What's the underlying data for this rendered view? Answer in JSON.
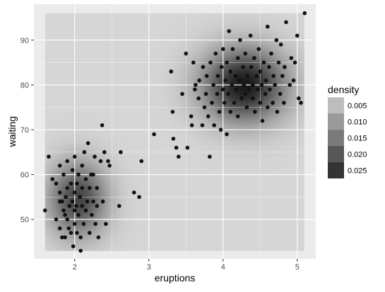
{
  "chart_data": {
    "type": "scatter",
    "title": "",
    "xlabel": "eruptions",
    "ylabel": "waiting",
    "xlim": [
      1.45,
      5.25
    ],
    "ylim": [
      41.2,
      98.0
    ],
    "xticks": [
      2,
      3,
      4,
      5
    ],
    "yticks": [
      50,
      60,
      70,
      80,
      90
    ],
    "grid": true,
    "background": "grey",
    "density_raster": {
      "x_range": [
        1.6,
        5.1
      ],
      "y_range": [
        43,
        96
      ],
      "components": [
        {
          "mx": 2.04,
          "my": 54.5,
          "sx": 0.28,
          "sy": 5.8,
          "w": 0.35
        },
        {
          "mx": 4.29,
          "my": 80.0,
          "sx": 0.4,
          "sy": 5.8,
          "w": 0.65
        }
      ]
    },
    "legend": {
      "title": "density",
      "position": "right",
      "labels": [
        "0.005",
        "0.010",
        "0.015",
        "0.020",
        "0.025"
      ],
      "colors": [
        "#bdbdbd",
        "#9a9a9a",
        "#7a7a7a",
        "#575757",
        "#343434"
      ]
    },
    "point_color": "#111111",
    "points": [
      [
        1.6,
        52
      ],
      [
        1.65,
        64
      ],
      [
        1.7,
        59
      ],
      [
        1.75,
        58
      ],
      [
        1.75,
        50
      ],
      [
        1.8,
        62
      ],
      [
        1.8,
        54
      ],
      [
        1.8,
        56
      ],
      [
        1.8,
        48
      ],
      [
        1.83,
        46
      ],
      [
        1.83,
        54
      ],
      [
        1.85,
        52
      ],
      [
        1.85,
        60
      ],
      [
        1.87,
        51
      ],
      [
        1.87,
        46
      ],
      [
        1.88,
        55
      ],
      [
        1.9,
        63
      ],
      [
        1.9,
        57
      ],
      [
        1.9,
        50
      ],
      [
        1.92,
        48
      ],
      [
        1.93,
        53
      ],
      [
        1.95,
        58
      ],
      [
        1.95,
        47
      ],
      [
        1.97,
        54
      ],
      [
        1.97,
        61
      ],
      [
        1.98,
        44
      ],
      [
        2.0,
        52
      ],
      [
        2.0,
        56
      ],
      [
        2.0,
        49
      ],
      [
        2.0,
        64
      ],
      [
        2.02,
        53
      ],
      [
        2.03,
        58
      ],
      [
        2.03,
        47
      ],
      [
        2.05,
        60
      ],
      [
        2.05,
        51
      ],
      [
        2.07,
        55
      ],
      [
        2.08,
        46
      ],
      [
        2.08,
        43
      ],
      [
        2.1,
        62
      ],
      [
        2.1,
        53
      ],
      [
        2.1,
        57
      ],
      [
        2.12,
        49
      ],
      [
        2.13,
        65
      ],
      [
        2.15,
        52
      ],
      [
        2.15,
        59
      ],
      [
        2.17,
        54
      ],
      [
        2.18,
        67
      ],
      [
        2.2,
        47
      ],
      [
        2.2,
        57
      ],
      [
        2.22,
        60
      ],
      [
        2.23,
        51
      ],
      [
        2.25,
        60
      ],
      [
        2.25,
        54
      ],
      [
        2.27,
        64
      ],
      [
        2.28,
        49
      ],
      [
        2.3,
        57
      ],
      [
        2.3,
        53
      ],
      [
        2.32,
        46
      ],
      [
        2.35,
        63
      ],
      [
        2.37,
        71
      ],
      [
        2.38,
        54
      ],
      [
        2.4,
        65
      ],
      [
        2.42,
        49
      ],
      [
        2.45,
        63
      ],
      [
        2.47,
        62
      ],
      [
        2.62,
        65
      ],
      [
        2.6,
        53
      ],
      [
        2.8,
        56
      ],
      [
        2.87,
        55
      ],
      [
        2.9,
        63
      ],
      [
        3.07,
        69
      ],
      [
        3.3,
        83
      ],
      [
        3.32,
        74
      ],
      [
        3.33,
        68
      ],
      [
        3.37,
        66
      ],
      [
        3.4,
        64
      ],
      [
        3.45,
        78
      ],
      [
        3.5,
        87
      ],
      [
        3.52,
        66
      ],
      [
        3.57,
        73
      ],
      [
        3.58,
        71
      ],
      [
        3.6,
        85
      ],
      [
        3.62,
        79
      ],
      [
        3.63,
        80
      ],
      [
        3.67,
        77
      ],
      [
        3.68,
        81
      ],
      [
        3.72,
        71
      ],
      [
        3.73,
        84
      ],
      [
        3.75,
        75
      ],
      [
        3.77,
        78
      ],
      [
        3.78,
        82
      ],
      [
        3.8,
        73
      ],
      [
        3.82,
        64
      ],
      [
        3.83,
        85
      ],
      [
        3.85,
        76
      ],
      [
        3.87,
        80
      ],
      [
        3.88,
        71
      ],
      [
        3.9,
        87
      ],
      [
        3.92,
        78
      ],
      [
        3.93,
        82
      ],
      [
        3.95,
        74
      ],
      [
        3.97,
        70
      ],
      [
        3.98,
        84
      ],
      [
        4.0,
        79
      ],
      [
        4.0,
        88
      ],
      [
        4.02,
        76
      ],
      [
        4.03,
        81
      ],
      [
        4.05,
        69
      ],
      [
        4.05,
        85
      ],
      [
        4.07,
        78
      ],
      [
        4.08,
        92
      ],
      [
        4.1,
        74
      ],
      [
        4.1,
        83
      ],
      [
        4.12,
        80
      ],
      [
        4.13,
        88
      ],
      [
        4.15,
        76
      ],
      [
        4.17,
        82
      ],
      [
        4.18,
        79
      ],
      [
        4.2,
        86
      ],
      [
        4.2,
        73
      ],
      [
        4.22,
        81
      ],
      [
        4.23,
        90
      ],
      [
        4.25,
        77
      ],
      [
        4.27,
        84
      ],
      [
        4.28,
        80
      ],
      [
        4.3,
        78
      ],
      [
        4.3,
        87
      ],
      [
        4.32,
        75
      ],
      [
        4.33,
        82
      ],
      [
        4.35,
        79
      ],
      [
        4.37,
        91
      ],
      [
        4.38,
        84
      ],
      [
        4.4,
        77
      ],
      [
        4.4,
        80
      ],
      [
        4.42,
        86
      ],
      [
        4.43,
        74
      ],
      [
        4.45,
        82
      ],
      [
        4.47,
        79
      ],
      [
        4.48,
        88
      ],
      [
        4.5,
        76
      ],
      [
        4.5,
        83
      ],
      [
        4.52,
        80
      ],
      [
        4.53,
        72
      ],
      [
        4.55,
        85
      ],
      [
        4.57,
        78
      ],
      [
        4.58,
        81
      ],
      [
        4.6,
        93
      ],
      [
        4.6,
        75
      ],
      [
        4.62,
        84
      ],
      [
        4.63,
        79
      ],
      [
        4.65,
        87
      ],
      [
        4.67,
        76
      ],
      [
        4.68,
        82
      ],
      [
        4.7,
        80
      ],
      [
        4.72,
        90
      ],
      [
        4.73,
        74
      ],
      [
        4.75,
        85
      ],
      [
        4.77,
        78
      ],
      [
        4.78,
        89
      ],
      [
        4.8,
        82
      ],
      [
        4.82,
        76
      ],
      [
        4.83,
        84
      ],
      [
        4.85,
        94
      ],
      [
        4.9,
        80
      ],
      [
        4.92,
        86
      ],
      [
        4.95,
        81
      ],
      [
        4.97,
        85
      ],
      [
        5.0,
        91
      ],
      [
        5.02,
        77
      ],
      [
        5.05,
        76
      ],
      [
        5.1,
        96
      ]
    ]
  }
}
